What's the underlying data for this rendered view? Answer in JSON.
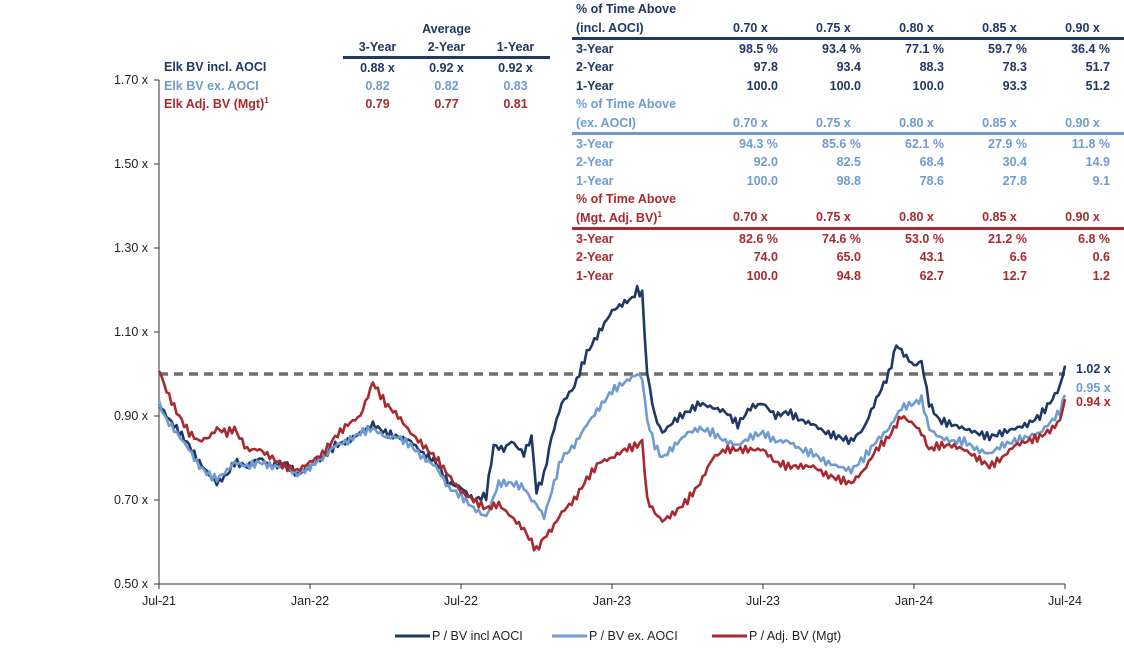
{
  "colors": {
    "dark": "#1f3864",
    "light": "#6f9bd1",
    "red": "#a82a2e",
    "dashed": "#6e6e6e",
    "axis": "#333333"
  },
  "averages": {
    "title": "Average",
    "periods": [
      "3-Year",
      "2-Year",
      "1-Year"
    ],
    "rows": [
      {
        "label": "Elk BV incl. AOCI",
        "values": [
          "0.88 x",
          "0.92 x",
          "0.92 x"
        ]
      },
      {
        "label": "Elk BV ex. AOCI",
        "values": [
          "0.82",
          "0.82",
          "0.83"
        ]
      },
      {
        "label": "Elk Adj. BV (Mgt)",
        "sup": "1",
        "values": [
          "0.79",
          "0.77",
          "0.81"
        ]
      }
    ]
  },
  "pct_tables": [
    {
      "title1": "% of Time Above",
      "title2": "(incl. AOCI)",
      "title2_sup": "",
      "thresholds": [
        "0.70 x",
        "0.75 x",
        "0.80 x",
        "0.85 x",
        "0.90 x"
      ],
      "rows": [
        {
          "label": "3-Year",
          "values": [
            "98.5 %",
            "93.4 %",
            "77.1 %",
            "59.7 %",
            "36.4 %"
          ]
        },
        {
          "label": "2-Year",
          "values": [
            "97.8",
            "93.4",
            "88.3",
            "78.3",
            "51.7"
          ]
        },
        {
          "label": "1-Year",
          "values": [
            "100.0",
            "100.0",
            "100.0",
            "93.3",
            "51.2"
          ]
        }
      ]
    },
    {
      "title1": "% of Time Above",
      "title2": "(ex. AOCI)",
      "title2_sup": "",
      "thresholds": [
        "0.70 x",
        "0.75 x",
        "0.80 x",
        "0.85 x",
        "0.90 x"
      ],
      "rows": [
        {
          "label": "3-Year",
          "values": [
            "94.3 %",
            "85.6 %",
            "62.1 %",
            "27.9 %",
            "11.8 %"
          ]
        },
        {
          "label": "2-Year",
          "values": [
            "92.0",
            "82.5",
            "68.4",
            "30.4",
            "14.9"
          ]
        },
        {
          "label": "1-Year",
          "values": [
            "100.0",
            "98.8",
            "78.6",
            "27.8",
            "9.1"
          ]
        }
      ]
    },
    {
      "title1": "% of Time Above",
      "title2": "(Mgt. Adj. BV)",
      "title2_sup": "1",
      "thresholds": [
        "0.70 x",
        "0.75 x",
        "0.80 x",
        "0.85 x",
        "0.90 x"
      ],
      "rows": [
        {
          "label": "3-Year",
          "values": [
            "82.6 %",
            "74.6 %",
            "53.0 %",
            "21.2 %",
            "6.8 %"
          ]
        },
        {
          "label": "2-Year",
          "values": [
            "74.0",
            "65.0",
            "43.1",
            "6.6",
            "0.6"
          ]
        },
        {
          "label": "1-Year",
          "values": [
            "100.0",
            "94.8",
            "62.7",
            "12.7",
            "1.2"
          ]
        }
      ]
    }
  ],
  "chart_data": {
    "type": "line",
    "title": "",
    "xlabel": "",
    "ylabel": "",
    "ylim": [
      0.5,
      1.7
    ],
    "xlim": [
      0,
      36
    ],
    "grid": false,
    "x_unit": "months since Jul-21",
    "y_ticks": [
      0.5,
      0.7,
      0.9,
      1.1,
      1.3,
      1.5,
      1.7
    ],
    "y_tick_labels": [
      "0.50 x",
      "0.70 x",
      "0.90 x",
      "1.10 x",
      "1.30 x",
      "1.50 x",
      "1.70 x"
    ],
    "x_ticks": [
      0,
      6,
      12,
      18,
      24,
      30,
      36
    ],
    "x_tick_labels": [
      "Jul-21",
      "Jan-22",
      "Jul-22",
      "Jan-23",
      "Jul-23",
      "Jan-24",
      "Jul-24"
    ],
    "reference_line": {
      "y": 1.0,
      "style": "dashed"
    },
    "series": [
      {
        "name": "P / BV incl AOCI",
        "color": "#1f3864",
        "end_label": "1.02 x",
        "points": [
          [
            0,
            0.93
          ],
          [
            0.3,
            0.9
          ],
          [
            0.7,
            0.87
          ],
          [
            1.2,
            0.83
          ],
          [
            1.6,
            0.79
          ],
          [
            2.0,
            0.76
          ],
          [
            2.3,
            0.74
          ],
          [
            2.7,
            0.76
          ],
          [
            3.0,
            0.79
          ],
          [
            3.5,
            0.78
          ],
          [
            4.0,
            0.8
          ],
          [
            4.5,
            0.78
          ],
          [
            5.0,
            0.79
          ],
          [
            5.5,
            0.76
          ],
          [
            6.0,
            0.78
          ],
          [
            6.5,
            0.8
          ],
          [
            7.0,
            0.83
          ],
          [
            7.5,
            0.84
          ],
          [
            8.0,
            0.86
          ],
          [
            8.5,
            0.88
          ],
          [
            9.0,
            0.86
          ],
          [
            9.5,
            0.85
          ],
          [
            10.0,
            0.84
          ],
          [
            10.5,
            0.81
          ],
          [
            11.0,
            0.79
          ],
          [
            11.5,
            0.74
          ],
          [
            12.0,
            0.73
          ],
          [
            12.5,
            0.7
          ],
          [
            13.0,
            0.71
          ],
          [
            13.3,
            0.83
          ],
          [
            13.7,
            0.82
          ],
          [
            14.0,
            0.84
          ],
          [
            14.5,
            0.81
          ],
          [
            14.8,
            0.85
          ],
          [
            15.0,
            0.72
          ],
          [
            15.3,
            0.76
          ],
          [
            15.6,
            0.85
          ],
          [
            16.0,
            0.93
          ],
          [
            16.5,
            0.97
          ],
          [
            17.0,
            1.05
          ],
          [
            17.5,
            1.1
          ],
          [
            18.0,
            1.15
          ],
          [
            18.5,
            1.17
          ],
          [
            18.8,
            1.18
          ],
          [
            19.0,
            1.2
          ],
          [
            19.2,
            1.19
          ],
          [
            19.4,
            1.0
          ],
          [
            19.7,
            0.9
          ],
          [
            20.0,
            0.86
          ],
          [
            20.5,
            0.89
          ],
          [
            21.0,
            0.91
          ],
          [
            21.5,
            0.93
          ],
          [
            22.0,
            0.92
          ],
          [
            22.5,
            0.91
          ],
          [
            23.0,
            0.88
          ],
          [
            23.5,
            0.92
          ],
          [
            24.0,
            0.93
          ],
          [
            24.5,
            0.9
          ],
          [
            25.0,
            0.91
          ],
          [
            25.5,
            0.89
          ],
          [
            26.0,
            0.88
          ],
          [
            26.5,
            0.86
          ],
          [
            27.0,
            0.85
          ],
          [
            27.5,
            0.84
          ],
          [
            28.0,
            0.87
          ],
          [
            28.5,
            0.94
          ],
          [
            29.0,
            1.0
          ],
          [
            29.3,
            1.07
          ],
          [
            29.7,
            1.04
          ],
          [
            30.0,
            1.02
          ],
          [
            30.3,
            1.03
          ],
          [
            30.6,
            0.93
          ],
          [
            31.0,
            0.89
          ],
          [
            31.5,
            0.88
          ],
          [
            32.0,
            0.87
          ],
          [
            32.5,
            0.86
          ],
          [
            33.0,
            0.85
          ],
          [
            33.5,
            0.86
          ],
          [
            34.0,
            0.87
          ],
          [
            34.5,
            0.88
          ],
          [
            35.0,
            0.9
          ],
          [
            35.5,
            0.94
          ],
          [
            35.8,
            0.97
          ],
          [
            36.0,
            1.02
          ]
        ]
      },
      {
        "name": "P / BV ex. AOCI",
        "color": "#6f9bd1",
        "end_label": "0.95 x",
        "points": [
          [
            0,
            0.93
          ],
          [
            0.3,
            0.89
          ],
          [
            0.7,
            0.86
          ],
          [
            1.2,
            0.82
          ],
          [
            1.6,
            0.78
          ],
          [
            2.0,
            0.76
          ],
          [
            2.3,
            0.75
          ],
          [
            2.7,
            0.77
          ],
          [
            3.0,
            0.79
          ],
          [
            3.5,
            0.78
          ],
          [
            4.0,
            0.79
          ],
          [
            4.5,
            0.78
          ],
          [
            5.0,
            0.78
          ],
          [
            5.5,
            0.76
          ],
          [
            6.0,
            0.78
          ],
          [
            6.5,
            0.8
          ],
          [
            7.0,
            0.83
          ],
          [
            7.5,
            0.84
          ],
          [
            8.0,
            0.86
          ],
          [
            8.5,
            0.87
          ],
          [
            9.0,
            0.85
          ],
          [
            9.5,
            0.85
          ],
          [
            10.0,
            0.83
          ],
          [
            10.5,
            0.8
          ],
          [
            11.0,
            0.78
          ],
          [
            11.5,
            0.73
          ],
          [
            12.0,
            0.71
          ],
          [
            12.5,
            0.68
          ],
          [
            13.0,
            0.66
          ],
          [
            13.5,
            0.74
          ],
          [
            14.0,
            0.74
          ],
          [
            14.5,
            0.73
          ],
          [
            14.8,
            0.7
          ],
          [
            15.0,
            0.69
          ],
          [
            15.3,
            0.66
          ],
          [
            15.6,
            0.72
          ],
          [
            16.0,
            0.8
          ],
          [
            16.5,
            0.83
          ],
          [
            17.0,
            0.88
          ],
          [
            17.5,
            0.92
          ],
          [
            18.0,
            0.96
          ],
          [
            18.5,
            0.98
          ],
          [
            19.0,
            1.0
          ],
          [
            19.2,
            0.99
          ],
          [
            19.4,
            0.89
          ],
          [
            19.7,
            0.83
          ],
          [
            20.0,
            0.8
          ],
          [
            20.5,
            0.83
          ],
          [
            21.0,
            0.86
          ],
          [
            21.5,
            0.87
          ],
          [
            22.0,
            0.86
          ],
          [
            22.5,
            0.84
          ],
          [
            23.0,
            0.83
          ],
          [
            23.5,
            0.85
          ],
          [
            24.0,
            0.86
          ],
          [
            24.5,
            0.84
          ],
          [
            25.0,
            0.84
          ],
          [
            25.5,
            0.82
          ],
          [
            26.0,
            0.81
          ],
          [
            26.5,
            0.79
          ],
          [
            27.0,
            0.78
          ],
          [
            27.5,
            0.77
          ],
          [
            28.0,
            0.8
          ],
          [
            28.5,
            0.84
          ],
          [
            29.0,
            0.87
          ],
          [
            29.5,
            0.92
          ],
          [
            30.0,
            0.93
          ],
          [
            30.3,
            0.94
          ],
          [
            30.6,
            0.87
          ],
          [
            31.0,
            0.85
          ],
          [
            31.5,
            0.84
          ],
          [
            32.0,
            0.84
          ],
          [
            32.5,
            0.82
          ],
          [
            33.0,
            0.81
          ],
          [
            33.5,
            0.83
          ],
          [
            34.0,
            0.84
          ],
          [
            34.5,
            0.85
          ],
          [
            35.0,
            0.86
          ],
          [
            35.5,
            0.89
          ],
          [
            35.8,
            0.91
          ],
          [
            36.0,
            0.95
          ]
        ]
      },
      {
        "name": "P / Adj. BV (Mgt)",
        "color": "#a82a2e",
        "end_label": "0.94 x",
        "points": [
          [
            0,
            1.01
          ],
          [
            0.3,
            0.96
          ],
          [
            0.7,
            0.91
          ],
          [
            1.2,
            0.86
          ],
          [
            1.6,
            0.84
          ],
          [
            2.0,
            0.85
          ],
          [
            2.3,
            0.87
          ],
          [
            2.7,
            0.86
          ],
          [
            3.0,
            0.87
          ],
          [
            3.5,
            0.82
          ],
          [
            4.0,
            0.82
          ],
          [
            4.5,
            0.8
          ],
          [
            5.0,
            0.78
          ],
          [
            5.5,
            0.77
          ],
          [
            6.0,
            0.79
          ],
          [
            6.5,
            0.81
          ],
          [
            7.0,
            0.85
          ],
          [
            7.5,
            0.88
          ],
          [
            8.0,
            0.9
          ],
          [
            8.5,
            0.98
          ],
          [
            9.0,
            0.93
          ],
          [
            9.5,
            0.9
          ],
          [
            10.0,
            0.86
          ],
          [
            10.5,
            0.83
          ],
          [
            11.0,
            0.8
          ],
          [
            11.5,
            0.76
          ],
          [
            12.0,
            0.72
          ],
          [
            12.5,
            0.7
          ],
          [
            13.0,
            0.68
          ],
          [
            13.5,
            0.69
          ],
          [
            14.0,
            0.66
          ],
          [
            14.5,
            0.63
          ],
          [
            14.8,
            0.6
          ],
          [
            15.0,
            0.58
          ],
          [
            15.3,
            0.61
          ],
          [
            15.6,
            0.63
          ],
          [
            16.0,
            0.67
          ],
          [
            16.5,
            0.7
          ],
          [
            17.0,
            0.75
          ],
          [
            17.5,
            0.79
          ],
          [
            18.0,
            0.8
          ],
          [
            18.5,
            0.82
          ],
          [
            19.0,
            0.83
          ],
          [
            19.2,
            0.84
          ],
          [
            19.4,
            0.7
          ],
          [
            19.7,
            0.67
          ],
          [
            20.0,
            0.65
          ],
          [
            20.5,
            0.67
          ],
          [
            21.0,
            0.7
          ],
          [
            21.5,
            0.74
          ],
          [
            22.0,
            0.8
          ],
          [
            22.5,
            0.82
          ],
          [
            23.0,
            0.82
          ],
          [
            23.5,
            0.82
          ],
          [
            24.0,
            0.82
          ],
          [
            24.5,
            0.79
          ],
          [
            25.0,
            0.78
          ],
          [
            25.5,
            0.78
          ],
          [
            26.0,
            0.78
          ],
          [
            26.5,
            0.76
          ],
          [
            27.0,
            0.75
          ],
          [
            27.5,
            0.74
          ],
          [
            28.0,
            0.77
          ],
          [
            28.5,
            0.82
          ],
          [
            29.0,
            0.85
          ],
          [
            29.5,
            0.9
          ],
          [
            30.0,
            0.88
          ],
          [
            30.3,
            0.86
          ],
          [
            30.6,
            0.82
          ],
          [
            31.0,
            0.83
          ],
          [
            31.5,
            0.83
          ],
          [
            32.0,
            0.82
          ],
          [
            32.5,
            0.8
          ],
          [
            33.0,
            0.78
          ],
          [
            33.5,
            0.8
          ],
          [
            34.0,
            0.83
          ],
          [
            34.5,
            0.84
          ],
          [
            35.0,
            0.85
          ],
          [
            35.5,
            0.87
          ],
          [
            35.8,
            0.89
          ],
          [
            36.0,
            0.94
          ]
        ]
      }
    ]
  }
}
